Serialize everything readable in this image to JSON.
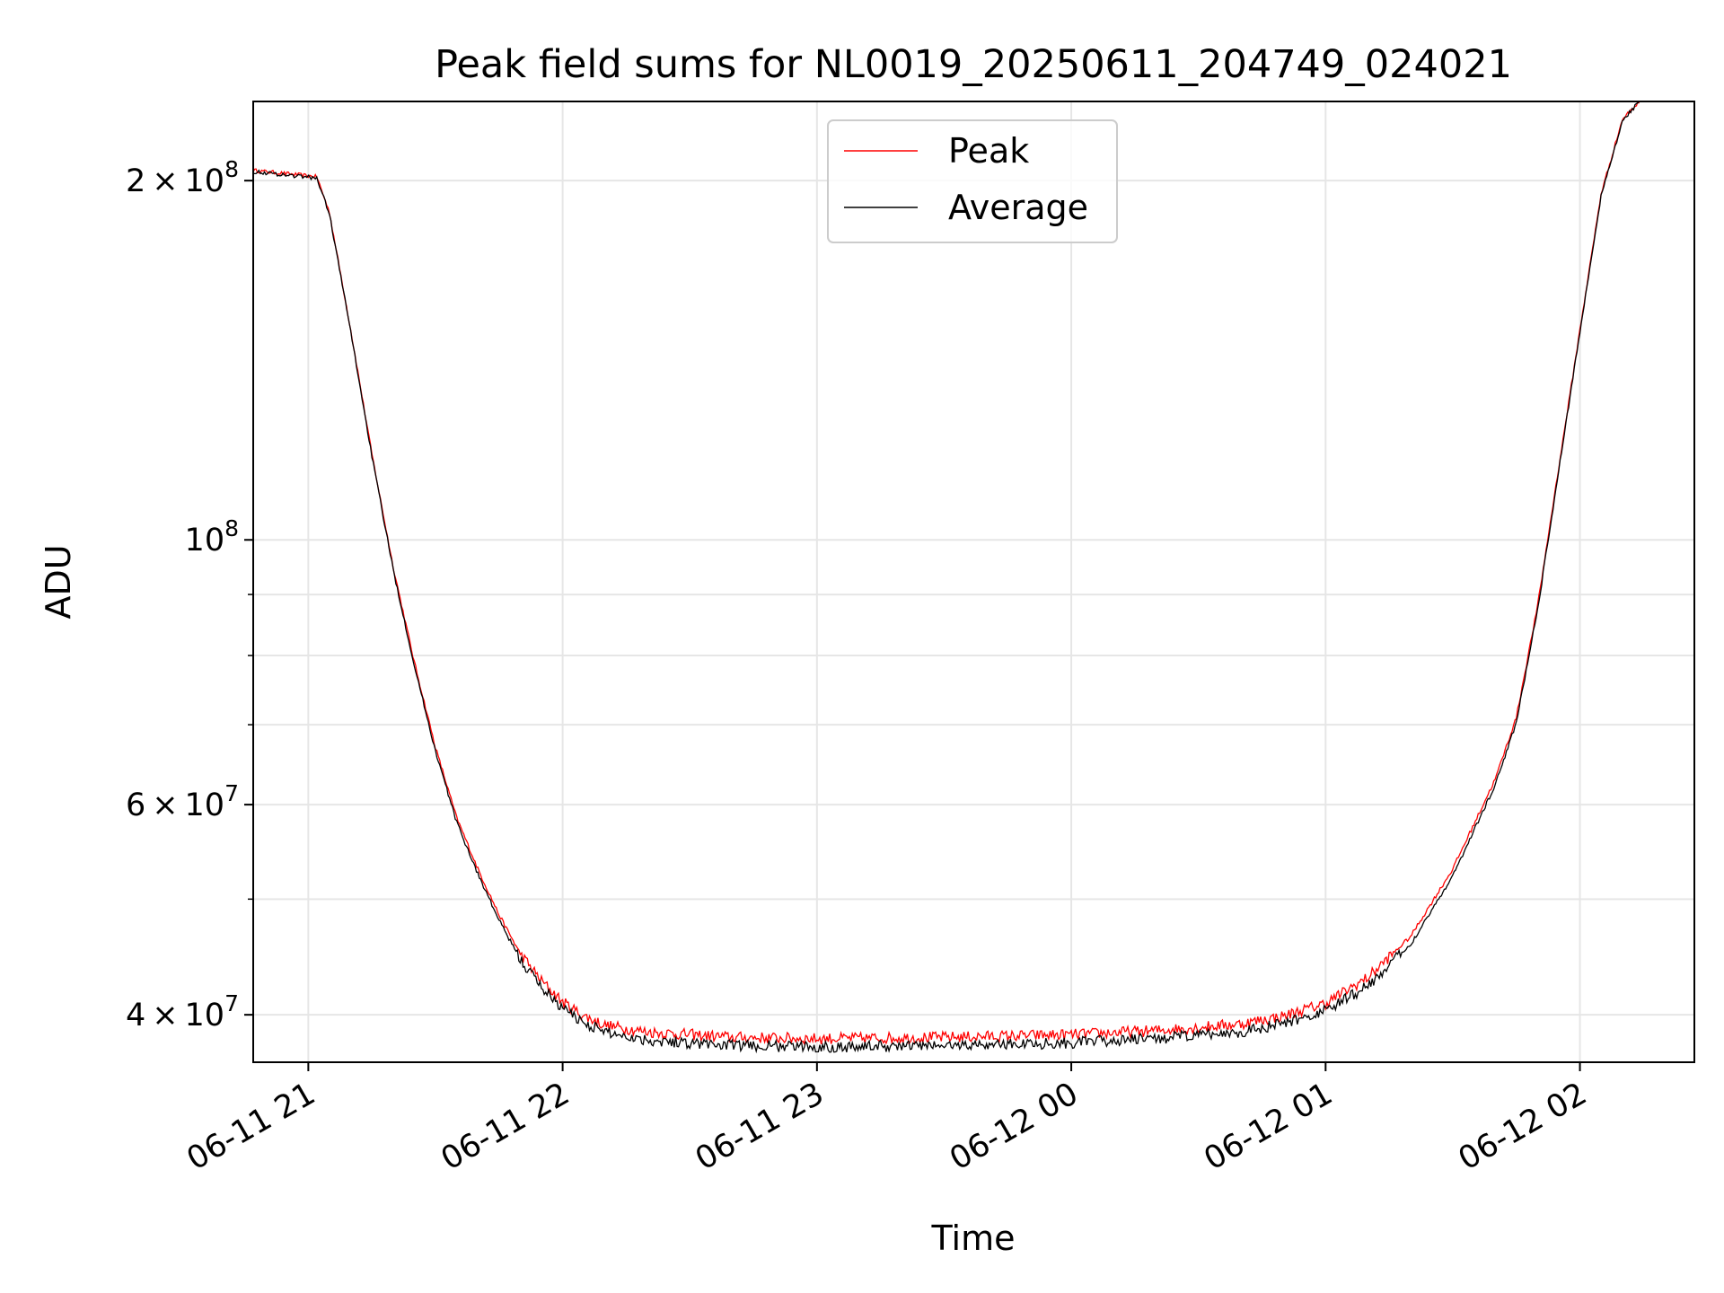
{
  "chart_data": {
    "type": "line",
    "title": "Peak field sums for NL0019_20250611_204749_024021",
    "xlabel": "Time",
    "ylabel": "ADU",
    "y_scale": "log",
    "ylim": [
      36500000,
      233000000
    ],
    "xlim": [
      "2025-06-11 20:47",
      "2025-06-12 02:27"
    ],
    "grid": true,
    "legend_position": "top-center",
    "x_ticks": [
      {
        "value": "2025-06-11 21:00",
        "label": "06-11 21"
      },
      {
        "value": "2025-06-11 22:00",
        "label": "06-11 22"
      },
      {
        "value": "2025-06-11 23:00",
        "label": "06-11 23"
      },
      {
        "value": "2025-06-12 00:00",
        "label": "06-12 00"
      },
      {
        "value": "2025-06-12 01:00",
        "label": "06-12 01"
      },
      {
        "value": "2025-06-12 02:00",
        "label": "06-12 02"
      }
    ],
    "y_ticks": [
      {
        "value": 40000000,
        "mant": "4",
        "exp": "7"
      },
      {
        "value": 60000000,
        "mant": "6",
        "exp": "7"
      },
      {
        "value": 100000000,
        "mant": "",
        "exp": "8"
      },
      {
        "value": 200000000,
        "mant": "2",
        "exp": "8"
      }
    ],
    "y_minor_ticks": [
      50000000,
      70000000,
      80000000,
      90000000
    ],
    "series": [
      {
        "name": "Peak",
        "color": "#ff0000",
        "points": [
          [
            "2025-06-11 20:47",
            204000000
          ],
          [
            "2025-06-11 21:02",
            201500000
          ],
          [
            "2025-06-11 21:05",
            188000000
          ],
          [
            "2025-06-11 21:10",
            150000000
          ],
          [
            "2025-06-11 21:15",
            118000000
          ],
          [
            "2025-06-11 21:20",
            95000000
          ],
          [
            "2025-06-11 21:25",
            79000000
          ],
          [
            "2025-06-11 21:30",
            67000000
          ],
          [
            "2025-06-11 21:35",
            58500000
          ],
          [
            "2025-06-11 21:40",
            53000000
          ],
          [
            "2025-06-11 21:45",
            48500000
          ],
          [
            "2025-06-11 21:50",
            45000000
          ],
          [
            "2025-06-11 21:55",
            42700000
          ],
          [
            "2025-06-11 22:00",
            41000000
          ],
          [
            "2025-06-11 22:05",
            39900000
          ],
          [
            "2025-06-11 22:10",
            39200000
          ],
          [
            "2025-06-11 22:20",
            38700000
          ],
          [
            "2025-06-11 22:40",
            38300000
          ],
          [
            "2025-06-11 23:00",
            38200000
          ],
          [
            "2025-06-11 23:30",
            38300000
          ],
          [
            "2025-06-12 00:00",
            38500000
          ],
          [
            "2025-06-12 00:20",
            38800000
          ],
          [
            "2025-06-12 00:40",
            39300000
          ],
          [
            "2025-06-12 00:50",
            39900000
          ],
          [
            "2025-06-12 01:00",
            40900000
          ],
          [
            "2025-06-12 01:10",
            43000000
          ],
          [
            "2025-06-12 01:20",
            46500000
          ],
          [
            "2025-06-12 01:30",
            53000000
          ],
          [
            "2025-06-12 01:40",
            63000000
          ],
          [
            "2025-06-12 01:45",
            71000000
          ],
          [
            "2025-06-12 01:50",
            88000000
          ],
          [
            "2025-06-12 01:55",
            115000000
          ],
          [
            "2025-06-12 02:00",
            150000000
          ],
          [
            "2025-06-12 02:05",
            195000000
          ],
          [
            "2025-06-12 02:10",
            225000000
          ],
          [
            "2025-06-12 02:14",
            233000000
          ]
        ]
      },
      {
        "name": "Average",
        "color": "#000000",
        "points": [
          [
            "2025-06-11 20:47",
            203500000
          ],
          [
            "2025-06-11 21:02",
            201000000
          ],
          [
            "2025-06-11 21:05",
            187500000
          ],
          [
            "2025-06-11 21:10",
            149500000
          ],
          [
            "2025-06-11 21:15",
            117500000
          ],
          [
            "2025-06-11 21:20",
            94500000
          ],
          [
            "2025-06-11 21:25",
            78500000
          ],
          [
            "2025-06-11 21:30",
            66500000
          ],
          [
            "2025-06-11 21:35",
            58000000
          ],
          [
            "2025-06-11 21:40",
            52500000
          ],
          [
            "2025-06-11 21:45",
            48000000
          ],
          [
            "2025-06-11 21:50",
            44500000
          ],
          [
            "2025-06-11 21:55",
            42200000
          ],
          [
            "2025-06-11 22:00",
            40500000
          ],
          [
            "2025-06-11 22:05",
            39400000
          ],
          [
            "2025-06-11 22:10",
            38700000
          ],
          [
            "2025-06-11 22:20",
            38100000
          ],
          [
            "2025-06-11 22:40",
            37700000
          ],
          [
            "2025-06-11 23:00",
            37600000
          ],
          [
            "2025-06-11 23:30",
            37700000
          ],
          [
            "2025-06-12 00:00",
            37900000
          ],
          [
            "2025-06-12 00:20",
            38200000
          ],
          [
            "2025-06-12 00:40",
            38700000
          ],
          [
            "2025-06-12 00:50",
            39300000
          ],
          [
            "2025-06-12 01:00",
            40300000
          ],
          [
            "2025-06-12 01:10",
            42300000
          ],
          [
            "2025-06-12 01:20",
            45800000
          ],
          [
            "2025-06-12 01:30",
            52300000
          ],
          [
            "2025-06-12 01:40",
            62300000
          ],
          [
            "2025-06-12 01:45",
            70300000
          ],
          [
            "2025-06-12 01:50",
            87300000
          ],
          [
            "2025-06-12 01:55",
            114300000
          ],
          [
            "2025-06-12 02:00",
            149300000
          ],
          [
            "2025-06-12 02:05",
            194300000
          ],
          [
            "2025-06-12 02:10",
            224300000
          ],
          [
            "2025-06-12 02:14",
            233000000
          ]
        ]
      }
    ]
  }
}
